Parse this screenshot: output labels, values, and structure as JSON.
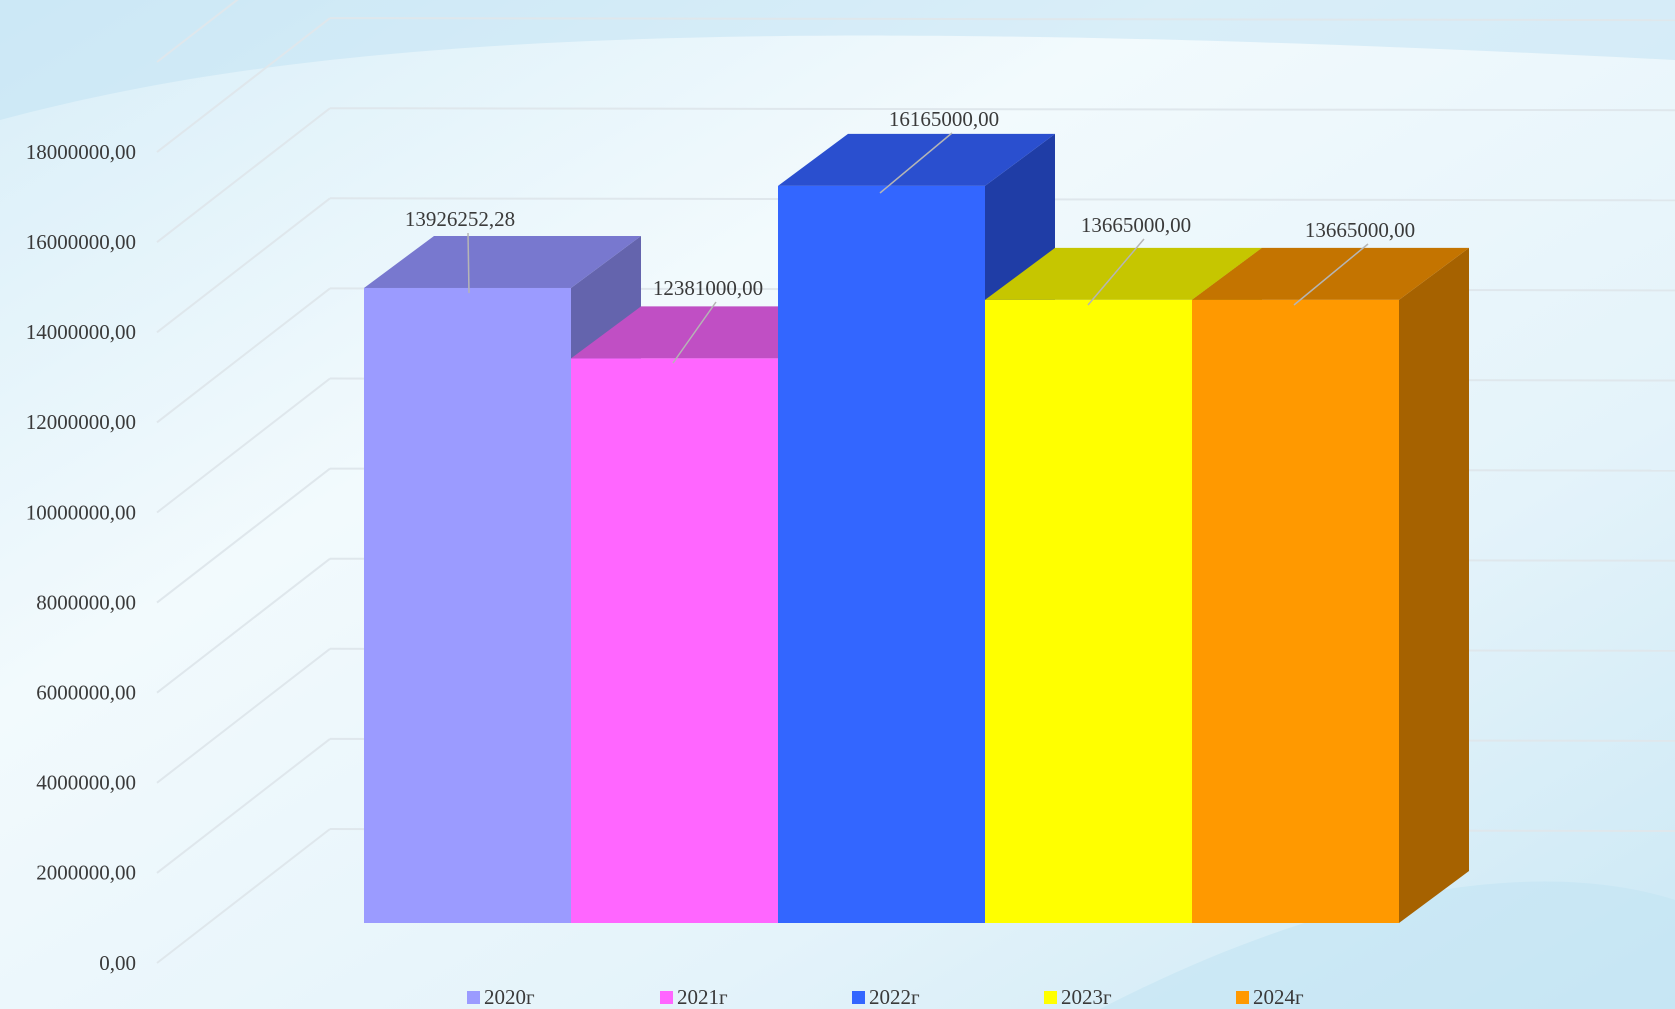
{
  "chart_data": {
    "type": "bar",
    "three_d": true,
    "categories": [
      "2020г",
      "2021г",
      "2022г",
      "2023г",
      "2024г"
    ],
    "values": [
      13926252.28,
      12381000.0,
      16165000.0,
      13665000.0,
      13665000.0
    ],
    "data_labels": [
      "13926252,28",
      "12381000,00",
      "16165000,00",
      "13665000,00",
      "13665000,00"
    ],
    "ylim": [
      0,
      18000000
    ],
    "y_ticks": [
      0,
      2000000,
      4000000,
      6000000,
      8000000,
      10000000,
      12000000,
      14000000,
      16000000,
      18000000
    ],
    "y_tick_labels": [
      "0,00",
      "2000000,00",
      "4000000,00",
      "6000000,00",
      "8000000,00",
      "10000000,00",
      "12000000,00",
      "14000000,00",
      "16000000,00",
      "18000000,00"
    ],
    "title": "",
    "xlabel": "",
    "ylabel": "",
    "grid": true,
    "legend_position": "bottom",
    "colors": {
      "front": [
        "#9b9bff",
        "#ff66ff",
        "#3366ff",
        "#ffff00",
        "#ff9900"
      ],
      "top": [
        "#7878cf",
        "#c04fc4",
        "#2a4fcf",
        "#c6c600",
        "#c47400"
      ],
      "side": [
        "#6464ad",
        "#a83fae",
        "#1f3da6",
        "#a3a300",
        "#a66200"
      ]
    }
  }
}
